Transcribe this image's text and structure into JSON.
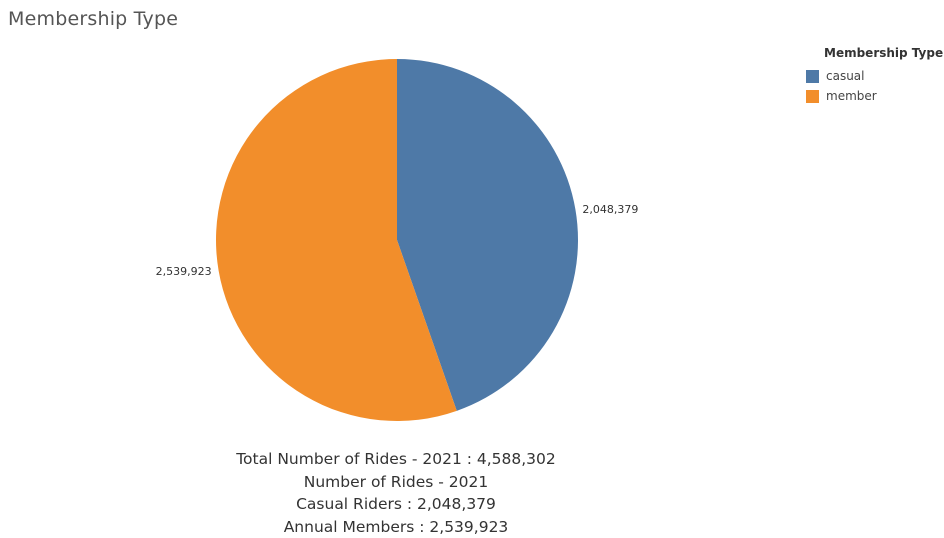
{
  "title": "Membership Type",
  "legend": {
    "title": "Membership Type",
    "items": [
      {
        "label": "casual",
        "color": "#4e79a7"
      },
      {
        "label": "member",
        "color": "#f28e2b"
      }
    ]
  },
  "summary": {
    "line1": "Total Number of Rides - 2021 : 4,588,302",
    "line2": "Number of Rides - 2021",
    "line3": "Casual Riders : 2,048,379",
    "line4": "Annual Members : 2,539,923"
  },
  "chart_data": {
    "type": "pie",
    "title": "Membership Type",
    "categories": [
      "casual",
      "member"
    ],
    "values": [
      2048379,
      2539923
    ],
    "labels": [
      "2,048,379",
      "2,539,923"
    ],
    "colors": [
      "#4e79a7",
      "#f28e2b"
    ],
    "legend_position": "top-right"
  }
}
